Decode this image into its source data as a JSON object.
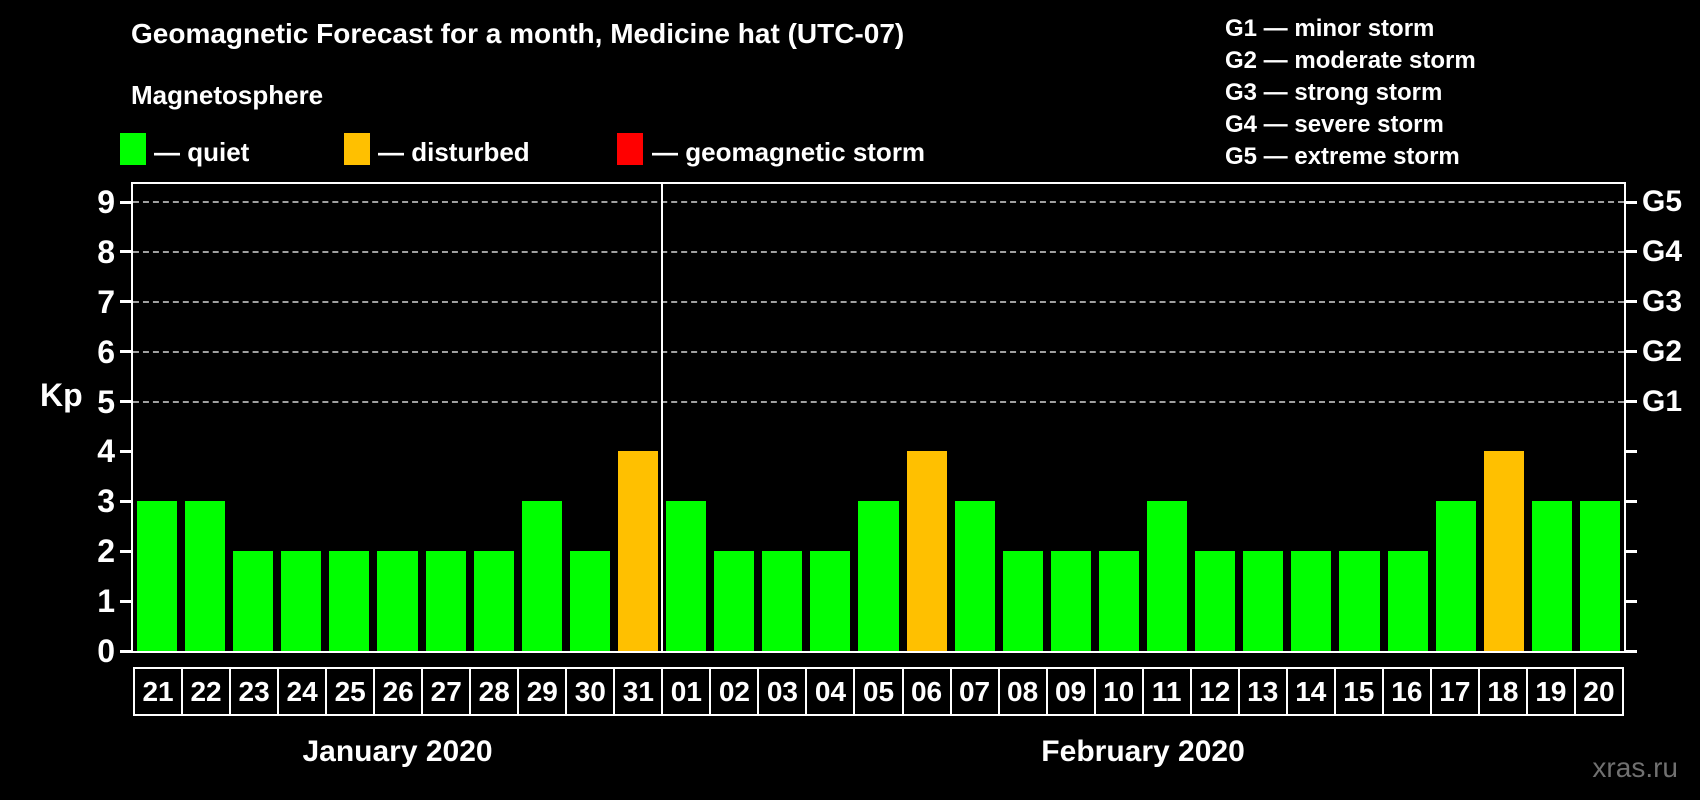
{
  "title": "Geomagnetic Forecast for a month, Medicine hat (UTC-07)",
  "subtitle": "Magnetosphere",
  "watermark": "xras.ru",
  "legend": {
    "items": [
      {
        "id": "quiet",
        "label": "— quiet",
        "color": "#00ff00"
      },
      {
        "id": "disturbed",
        "label": "— disturbed",
        "color": "#ffc000"
      },
      {
        "id": "storm",
        "label": "— geomagnetic storm",
        "color": "#ff0000"
      }
    ]
  },
  "g_scale_legend": {
    "items": [
      "G1 — minor storm",
      "G2 — moderate storm",
      "G3 — strong storm",
      "G4 — severe storm",
      "G5 — extreme storm"
    ]
  },
  "colors": {
    "background": "#000000",
    "text": "#ffffff",
    "frame": "#ffffff",
    "grid": "#a0a0a0",
    "quiet": "#00ff00",
    "disturbed": "#ffc000",
    "storm": "#ff0000",
    "watermark": "#707070"
  },
  "chart_data": {
    "type": "bar",
    "ylabel_left": "Kp",
    "ylim": [
      0,
      9.4
    ],
    "yticks_left": [
      0,
      1,
      2,
      3,
      4,
      5,
      6,
      7,
      8,
      9
    ],
    "yticks_right": [
      {
        "kp": 5,
        "label": "G1"
      },
      {
        "kp": 6,
        "label": "G2"
      },
      {
        "kp": 7,
        "label": "G3"
      },
      {
        "kp": 8,
        "label": "G4"
      },
      {
        "kp": 9,
        "label": "G5"
      }
    ],
    "grid_at_kp": [
      5,
      6,
      7,
      8,
      9
    ],
    "legend_position": "top",
    "months": [
      {
        "label": "January 2020",
        "days": [
          {
            "day": "21",
            "kp": 3,
            "status": "quiet"
          },
          {
            "day": "22",
            "kp": 3,
            "status": "quiet"
          },
          {
            "day": "23",
            "kp": 2,
            "status": "quiet"
          },
          {
            "day": "24",
            "kp": 2,
            "status": "quiet"
          },
          {
            "day": "25",
            "kp": 2,
            "status": "quiet"
          },
          {
            "day": "26",
            "kp": 2,
            "status": "quiet"
          },
          {
            "day": "27",
            "kp": 2,
            "status": "quiet"
          },
          {
            "day": "28",
            "kp": 2,
            "status": "quiet"
          },
          {
            "day": "29",
            "kp": 3,
            "status": "quiet"
          },
          {
            "day": "30",
            "kp": 2,
            "status": "quiet"
          },
          {
            "day": "31",
            "kp": 4,
            "status": "disturbed"
          }
        ]
      },
      {
        "label": "February 2020",
        "days": [
          {
            "day": "01",
            "kp": 3,
            "status": "quiet"
          },
          {
            "day": "02",
            "kp": 2,
            "status": "quiet"
          },
          {
            "day": "03",
            "kp": 2,
            "status": "quiet"
          },
          {
            "day": "04",
            "kp": 2,
            "status": "quiet"
          },
          {
            "day": "05",
            "kp": 3,
            "status": "quiet"
          },
          {
            "day": "06",
            "kp": 4,
            "status": "disturbed"
          },
          {
            "day": "07",
            "kp": 3,
            "status": "quiet"
          },
          {
            "day": "08",
            "kp": 2,
            "status": "quiet"
          },
          {
            "day": "09",
            "kp": 2,
            "status": "quiet"
          },
          {
            "day": "10",
            "kp": 2,
            "status": "quiet"
          },
          {
            "day": "11",
            "kp": 3,
            "status": "quiet"
          },
          {
            "day": "12",
            "kp": 2,
            "status": "quiet"
          },
          {
            "day": "13",
            "kp": 2,
            "status": "quiet"
          },
          {
            "day": "14",
            "kp": 2,
            "status": "quiet"
          },
          {
            "day": "15",
            "kp": 2,
            "status": "quiet"
          },
          {
            "day": "16",
            "kp": 2,
            "status": "quiet"
          },
          {
            "day": "17",
            "kp": 3,
            "status": "quiet"
          },
          {
            "day": "18",
            "kp": 4,
            "status": "disturbed"
          },
          {
            "day": "19",
            "kp": 3,
            "status": "quiet"
          },
          {
            "day": "20",
            "kp": 3,
            "status": "quiet"
          }
        ]
      }
    ]
  }
}
